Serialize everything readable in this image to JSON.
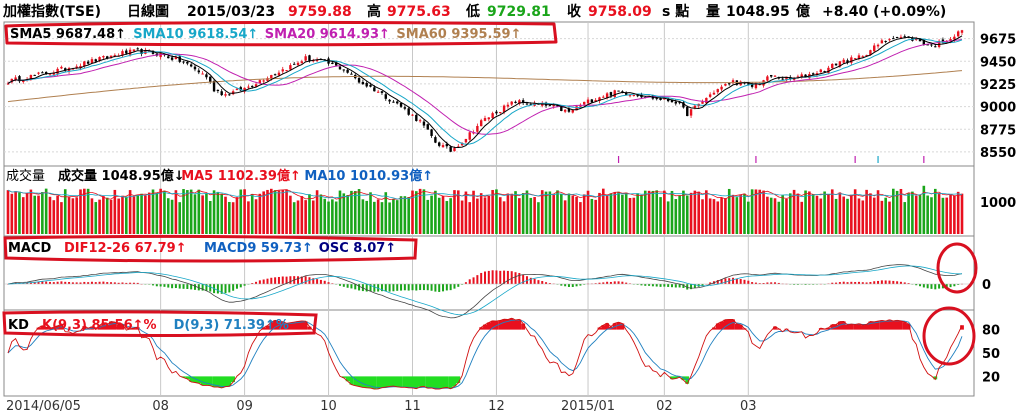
{
  "header": {
    "index_name": "加權指數(TSE)",
    "period": "日線圖",
    "date": "2015/03/23",
    "open": "9759.88",
    "high_label": "高",
    "high": "9775.63",
    "low_label": "低",
    "low": "9729.81",
    "close_label": "收",
    "close": "9758.09",
    "points_label": "s 點",
    "volume_label": "量",
    "volume": "1048.95",
    "volume_unit": "億",
    "change": "+8.40 (+0.09%)"
  },
  "colors": {
    "up": "#e8101e",
    "down": "#1aa51a",
    "sma5": "#000000",
    "sma10": "#18a7c8",
    "sma20": "#c020b0",
    "sma60": "#b08050",
    "k_line": "#d01010",
    "d_line": "#2080c0",
    "highlight": "#d81020"
  },
  "x_axis": {
    "labels": [
      "2014/06/05",
      "08",
      "09",
      "10",
      "11",
      "12",
      "2015/01",
      "02",
      "03"
    ]
  },
  "chart_data": [
    {
      "panel": "price",
      "type": "line",
      "title": "",
      "legend": [
        {
          "name": "SMA5",
          "value": "9687.48",
          "arrow": "↑"
        },
        {
          "name": "SMA10",
          "value": "9618.54",
          "arrow": "↑"
        },
        {
          "name": "SMA20",
          "value": "9614.93",
          "arrow": "↑"
        },
        {
          "name": "SMA60",
          "value": "9395.59",
          "arrow": "↑"
        }
      ],
      "y_ticks": [
        9675,
        9450,
        9225,
        9000,
        8775,
        8550
      ],
      "ylim": [
        8450,
        9800
      ],
      "close_keypoints": [
        [
          0,
          9250
        ],
        [
          12,
          9350
        ],
        [
          22,
          9450
        ],
        [
          30,
          9530
        ],
        [
          34,
          9550
        ],
        [
          40,
          9520
        ],
        [
          46,
          9440
        ],
        [
          52,
          9300
        ],
        [
          54,
          9170
        ],
        [
          57,
          9120
        ],
        [
          62,
          9180
        ],
        [
          68,
          9300
        ],
        [
          74,
          9400
        ],
        [
          78,
          9480
        ],
        [
          83,
          9440
        ],
        [
          88,
          9370
        ],
        [
          92,
          9250
        ],
        [
          97,
          9150
        ],
        [
          103,
          9000
        ],
        [
          108,
          8850
        ],
        [
          112,
          8650
        ],
        [
          116,
          8560
        ],
        [
          120,
          8690
        ],
        [
          124,
          8850
        ],
        [
          128,
          8950
        ],
        [
          133,
          9050
        ],
        [
          138,
          9020
        ],
        [
          143,
          9000
        ],
        [
          147,
          8940
        ],
        [
          150,
          9020
        ],
        [
          155,
          9100
        ],
        [
          160,
          9150
        ],
        [
          165,
          9120
        ],
        [
          170,
          9080
        ],
        [
          175,
          9050
        ],
        [
          178,
          8930
        ],
        [
          181,
          9020
        ],
        [
          185,
          9150
        ],
        [
          190,
          9250
        ],
        [
          195,
          9200
        ],
        [
          200,
          9300
        ],
        [
          205,
          9270
        ],
        [
          210,
          9320
        ],
        [
          215,
          9380
        ],
        [
          218,
          9450
        ],
        [
          222,
          9470
        ],
        [
          226,
          9560
        ],
        [
          229,
          9640
        ],
        [
          232,
          9700
        ],
        [
          236,
          9680
        ],
        [
          239,
          9650
        ],
        [
          242,
          9600
        ],
        [
          245,
          9650
        ],
        [
          248,
          9700
        ],
        [
          250,
          9758
        ]
      ]
    },
    {
      "panel": "volume",
      "type": "bar",
      "legend": [
        {
          "name": "成交量",
          "value": "1048.95",
          "arrow": "↓",
          "unit": "億"
        },
        {
          "name": "MA5",
          "value": "1102.39",
          "arrow": "↑",
          "unit": "億"
        },
        {
          "name": "MA10",
          "value": "1010.93",
          "arrow": "↑",
          "unit": "億"
        }
      ],
      "title": "成交量",
      "y_ticks": [
        1000
      ],
      "ylim": [
        0,
        1300
      ]
    },
    {
      "panel": "macd",
      "type": "bar",
      "title": "MACD",
      "legend": [
        {
          "name": "DIF12-26",
          "value": "67.79",
          "arrow": "↑"
        },
        {
          "name": "MACD9",
          "value": "59.73",
          "arrow": "↑"
        },
        {
          "name": "OSC",
          "value": "8.07",
          "arrow": "↑"
        }
      ],
      "y_ticks": [
        0
      ],
      "ylim": [
        -120,
        140
      ]
    },
    {
      "panel": "kd",
      "type": "line",
      "title": "KD",
      "legend": [
        {
          "name": "K(9,3)",
          "value": "85.56",
          "arrow": "↑%"
        },
        {
          "name": "D(9,3)",
          "value": "71.39",
          "arrow": "↑%"
        }
      ],
      "y_ticks": [
        80,
        50,
        20
      ],
      "ylim": [
        0,
        100
      ]
    }
  ]
}
